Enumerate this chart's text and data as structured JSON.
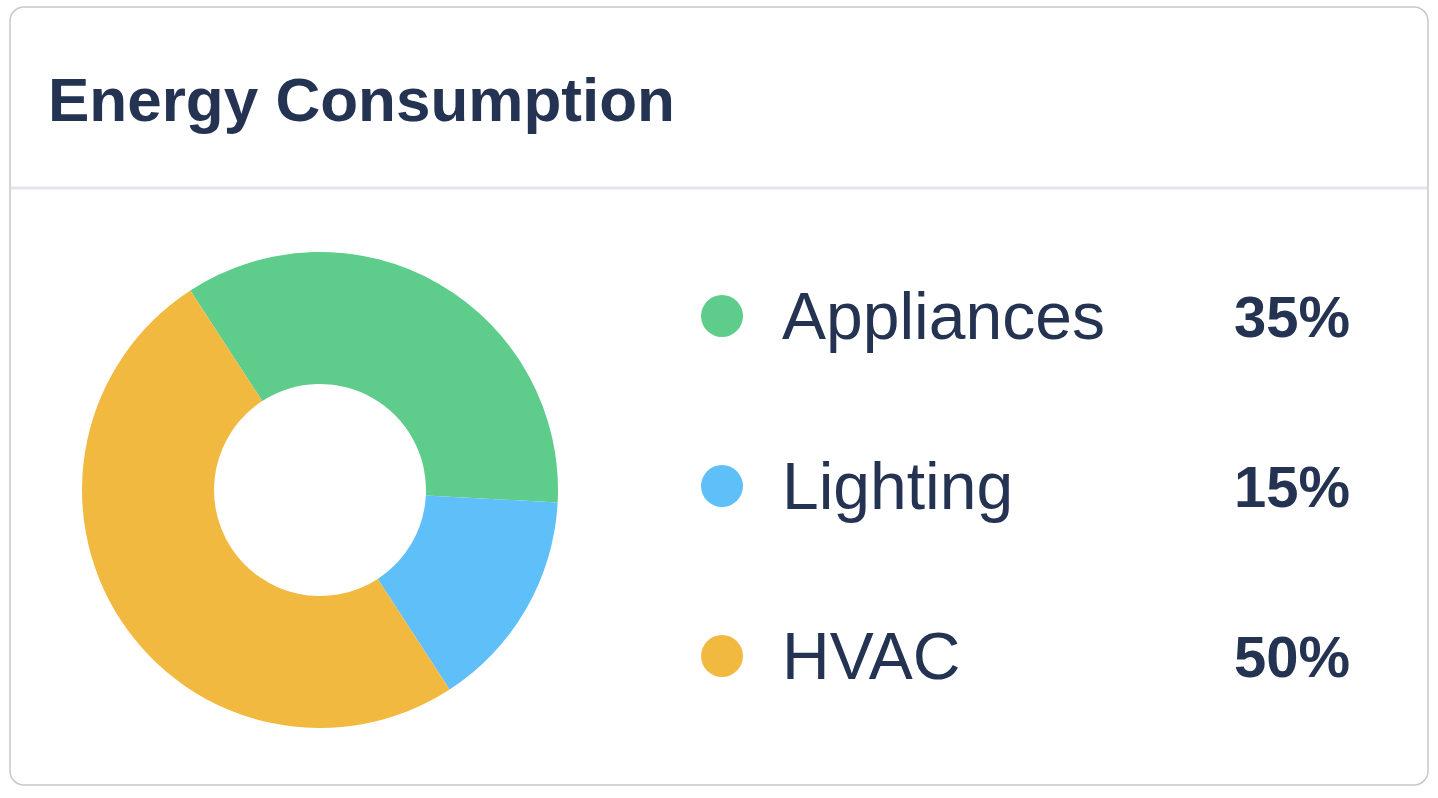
{
  "chart_data": {
    "type": "donut",
    "title": "Energy Consumption",
    "categories": [
      "Appliances",
      "Lighting",
      "HVAC"
    ],
    "values": [
      35,
      15,
      50
    ],
    "colors": [
      "#5ecc8b",
      "#5fbff9",
      "#f2b941"
    ],
    "value_labels": [
      "35%",
      "15%",
      "50%"
    ],
    "legend": "right"
  }
}
